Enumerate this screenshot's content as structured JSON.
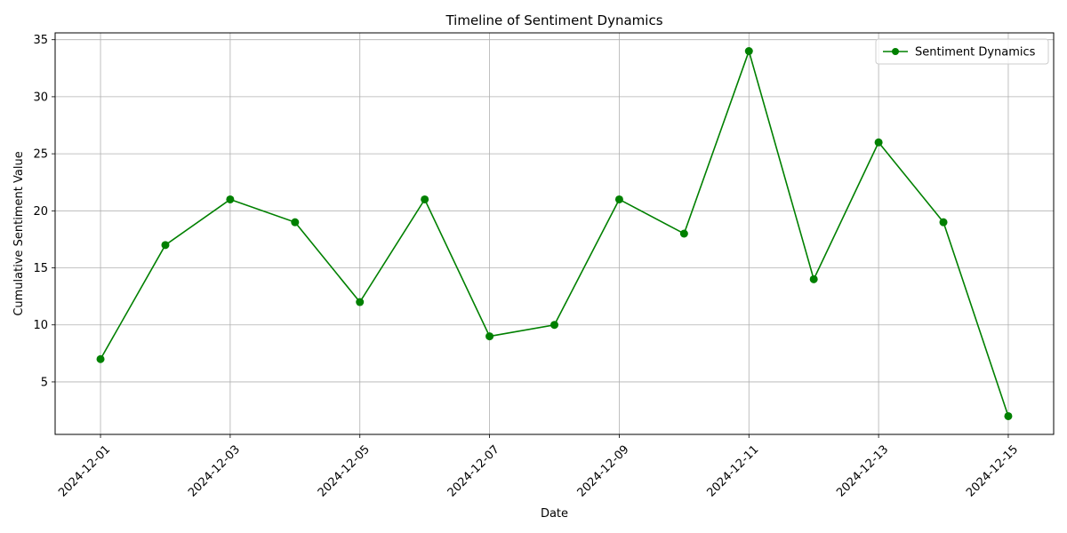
{
  "chart_data": {
    "type": "line",
    "title": "Timeline of Sentiment Dynamics",
    "xlabel": "Date",
    "ylabel": "Cumulative Sentiment Value",
    "x": [
      "2024-12-01",
      "2024-12-02",
      "2024-12-03",
      "2024-12-04",
      "2024-12-05",
      "2024-12-06",
      "2024-12-07",
      "2024-12-08",
      "2024-12-09",
      "2024-12-10",
      "2024-12-11",
      "2024-12-12",
      "2024-12-13",
      "2024-12-14",
      "2024-12-15"
    ],
    "series": [
      {
        "name": "Sentiment Dynamics",
        "color": "#008000",
        "marker": "circle",
        "values": [
          7,
          17,
          21,
          19,
          12,
          21,
          9,
          10,
          21,
          18,
          34,
          14,
          26,
          19,
          2
        ]
      }
    ],
    "x_ticks": [
      "2024-12-01",
      "2024-12-03",
      "2024-12-05",
      "2024-12-07",
      "2024-12-09",
      "2024-12-11",
      "2024-12-13",
      "2024-12-15"
    ],
    "y_ticks": [
      5,
      10,
      15,
      20,
      25,
      30,
      35
    ],
    "ylim": [
      0.4,
      35.6
    ],
    "grid": true,
    "legend_position": "top-right"
  }
}
